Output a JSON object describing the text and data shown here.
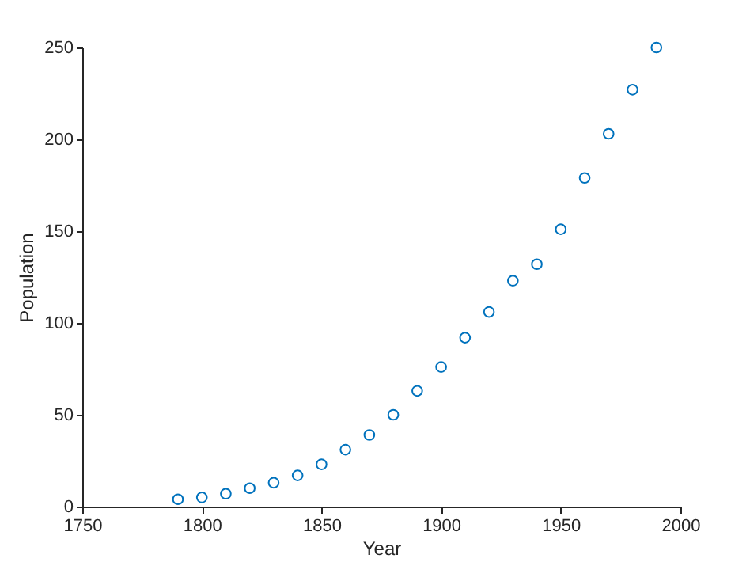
{
  "chart_data": {
    "type": "scatter",
    "xlabel": "Year",
    "ylabel": "Population",
    "x": [
      1790,
      1800,
      1810,
      1820,
      1830,
      1840,
      1850,
      1860,
      1870,
      1880,
      1890,
      1900,
      1910,
      1920,
      1930,
      1940,
      1950,
      1960,
      1970,
      1980,
      1990
    ],
    "series": [
      {
        "color": "#0072bd",
        "values": [
          4,
          5,
          7,
          10,
          13,
          17,
          23,
          31,
          39,
          50,
          63,
          76,
          92,
          106,
          123,
          132,
          151,
          179,
          203,
          227,
          250
        ]
      }
    ],
    "xlim": [
      1750,
      2000
    ],
    "xticks": [
      1750,
      1800,
      1850,
      1900,
      1950,
      2000
    ],
    "ylim": [
      0,
      250
    ],
    "yticks": [
      0,
      50,
      100,
      150,
      200,
      250
    ],
    "grid": false,
    "marker": "circle"
  }
}
